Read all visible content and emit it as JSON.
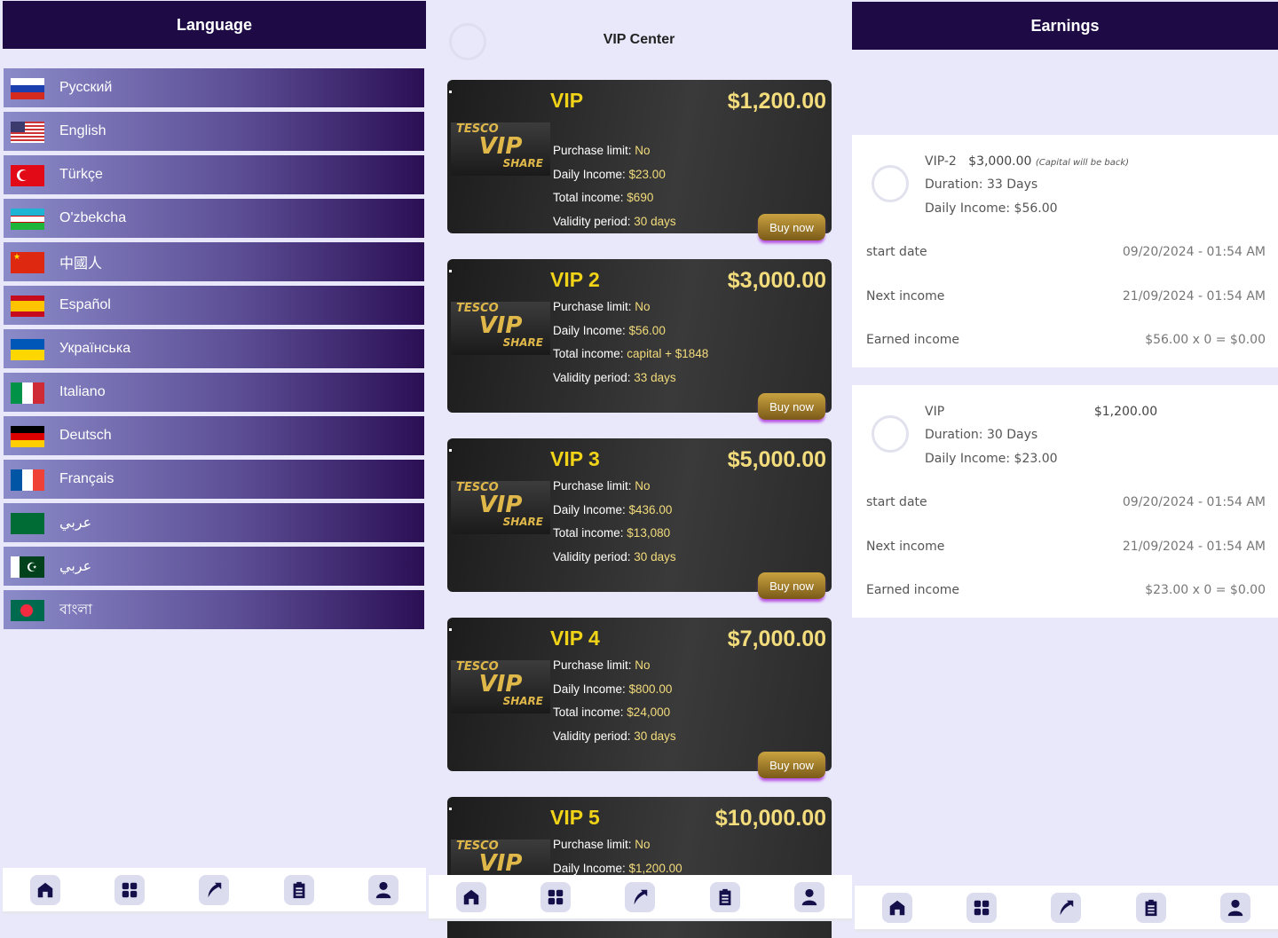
{
  "language": {
    "title": "Language",
    "items": [
      {
        "label": "Русский",
        "flag": "ru"
      },
      {
        "label": "English",
        "flag": "us"
      },
      {
        "label": "Türkçe",
        "flag": "tr"
      },
      {
        "label": "O'zbekcha",
        "flag": "uz"
      },
      {
        "label": "中國人",
        "flag": "cn"
      },
      {
        "label": "Español",
        "flag": "es"
      },
      {
        "label": "Українська",
        "flag": "ua"
      },
      {
        "label": "Italiano",
        "flag": "it"
      },
      {
        "label": "Deutsch",
        "flag": "de"
      },
      {
        "label": "Français",
        "flag": "fr"
      },
      {
        "label": "عربي",
        "flag": "sa"
      },
      {
        "label": "عربي",
        "flag": "pk"
      },
      {
        "label": "বাংলা",
        "flag": "bd"
      }
    ]
  },
  "vip": {
    "title": "VIP Center",
    "logo": [
      "TESCO",
      "VIP",
      "SHARE"
    ],
    "buy_label": "Buy now",
    "cards": [
      {
        "name": "VIP",
        "price": "$1,200.00",
        "lines": [
          [
            "Purchase limit: ",
            "No"
          ],
          [
            "Daily Income: ",
            "$23.00"
          ],
          [
            "Total income: ",
            "$690"
          ],
          [
            "Validity period: ",
            "30 days"
          ]
        ]
      },
      {
        "name": "VIP 2",
        "price": "$3,000.00",
        "lines": [
          [
            "Purchase limit: ",
            "No"
          ],
          [
            "Daily Income: ",
            "$56.00"
          ],
          [
            "Total income: ",
            "capital + $1848"
          ],
          [
            "Validity period: ",
            "33 days"
          ]
        ]
      },
      {
        "name": "VIP 3",
        "price": "$5,000.00",
        "lines": [
          [
            "Purchase limit: ",
            "No"
          ],
          [
            "Daily Income: ",
            "$436.00"
          ],
          [
            "Total income: ",
            "$13,080"
          ],
          [
            "Validity period: ",
            "30 days"
          ]
        ]
      },
      {
        "name": "VIP 4",
        "price": "$7,000.00",
        "lines": [
          [
            "Purchase limit: ",
            "No"
          ],
          [
            "Daily Income: ",
            "$800.00"
          ],
          [
            "Total income: ",
            "$24,000"
          ],
          [
            "Validity period: ",
            "30 days"
          ]
        ]
      },
      {
        "name": "VIP 5",
        "price": "$10,000.00",
        "lines": [
          [
            "Purchase limit: ",
            "No"
          ],
          [
            "Daily Income: ",
            "$1,200.00"
          ]
        ]
      }
    ]
  },
  "earnings": {
    "title": "Earnings",
    "items": [
      {
        "name": "VIP-2",
        "price": "$3,000.00",
        "note": "(Capital will be back)",
        "duration": "Duration: 33 Days",
        "daily": "Daily Income: $56.00",
        "start_label": "start date",
        "start": "09/20/2024 - 01:54 AM",
        "next_label": "Next income",
        "next": "21/09/2024 - 01:54 AM",
        "earned_label": "Earned income",
        "earned": "$56.00 x 0 = $0.00"
      },
      {
        "name": "VIP",
        "price": "$1,200.00",
        "note": "",
        "duration": "Duration: 30 Days",
        "daily": "Daily Income: $23.00",
        "start_label": "start date",
        "start": "09/20/2024 - 01:54 AM",
        "next_label": "Next income",
        "next": "21/09/2024 - 01:54 AM",
        "earned_label": "Earned income",
        "earned": "$23.00 x 0 = $0.00"
      }
    ]
  },
  "nav": [
    {
      "icon": "home-icon"
    },
    {
      "icon": "grid-icon"
    },
    {
      "icon": "share-arrow-icon"
    },
    {
      "icon": "clipboard-icon"
    },
    {
      "icon": "user-icon"
    }
  ],
  "colors": {
    "header": "#1e0b45",
    "background": "#e9e8fb",
    "gold": "#f1d317",
    "nav_icon": "#15104a"
  }
}
